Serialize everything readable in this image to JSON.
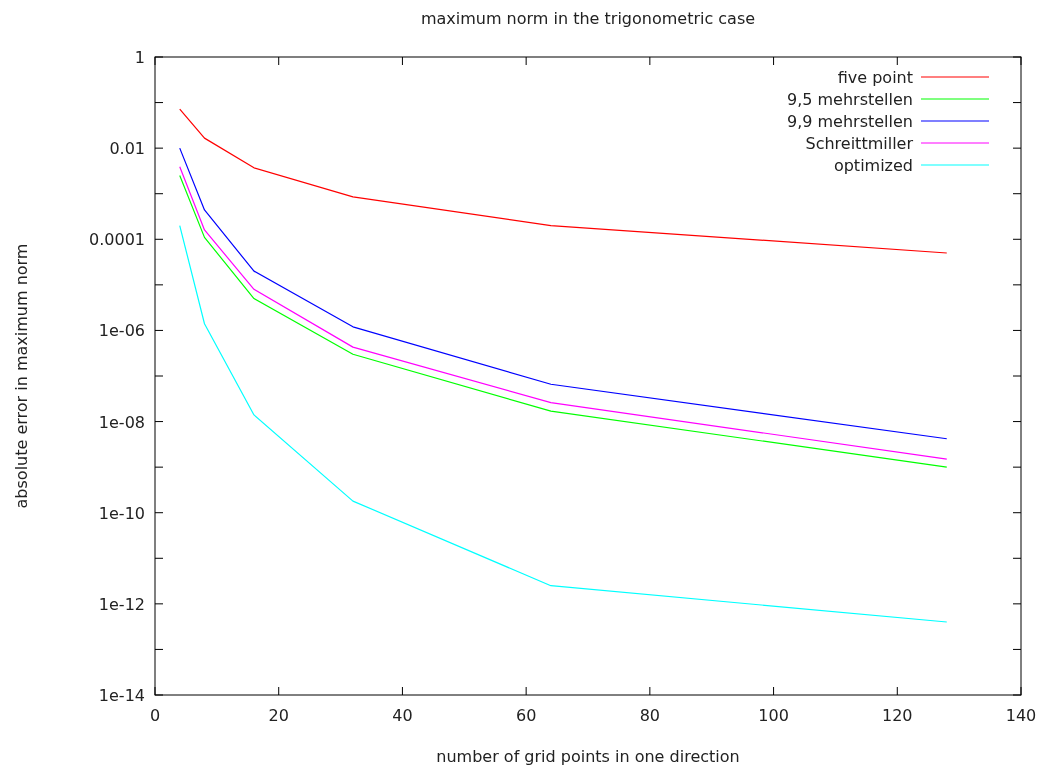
{
  "chart_data": {
    "type": "line",
    "title": "maximum norm in the trigonometric case",
    "xlabel": "number of grid points in one direction",
    "ylabel": "absolute error in maximum norm",
    "x": [
      4,
      8,
      16,
      32,
      64,
      128
    ],
    "series": [
      {
        "name": "five point",
        "color": "#ff0000",
        "values": [
          0.072,
          0.0166,
          0.0037,
          0.00085,
          0.0002,
          5e-05
        ]
      },
      {
        "name": "9,5 mehrstellen",
        "color": "#00ff00",
        "values": [
          0.0025,
          0.00011,
          5e-06,
          3e-07,
          1.7e-08,
          1e-09
        ]
      },
      {
        "name": "9,9 mehrstellen",
        "color": "#0000ff",
        "values": [
          0.01,
          0.00044,
          2e-05,
          1.2e-06,
          6.6e-08,
          4.2e-09
        ]
      },
      {
        "name": "Schreittmiller",
        "color": "#ff00ff",
        "values": [
          0.0039,
          0.00016,
          8e-06,
          4.3e-07,
          2.6e-08,
          1.5e-09
        ]
      },
      {
        "name": "optimized",
        "color": "#00ffff",
        "values": [
          0.0002,
          1.4e-06,
          1.4e-08,
          1.8e-10,
          2.5e-12,
          4e-13
        ]
      }
    ],
    "log": "y",
    "xlim": [
      0,
      140
    ],
    "xticks": [
      0,
      20,
      40,
      60,
      80,
      100,
      120,
      140
    ],
    "ylim": [
      1e-14,
      1
    ],
    "yticks": [
      1,
      {
        "value": 0.1,
        "label": null
      },
      "0.01",
      {
        "value": 0.001,
        "label": null
      },
      {
        "value": 0.0001,
        "label": "0.0001"
      },
      {
        "value": 1e-05,
        "label": null
      },
      {
        "value": 1e-06,
        "label": "1e-06"
      },
      {
        "value": 1e-07,
        "label": null
      },
      {
        "value": 1e-08,
        "label": "1e-08"
      },
      {
        "value": 1e-09,
        "label": null
      },
      {
        "value": 1e-10,
        "label": "1e-10"
      },
      {
        "value": 1e-11,
        "label": null
      },
      {
        "value": 1e-12,
        "label": "1e-12"
      },
      {
        "value": 1e-13,
        "label": null
      },
      {
        "value": 1e-14,
        "label": "1e-14"
      }
    ],
    "legend": "top right",
    "grid": false,
    "marker": "none",
    "line_style": "solid"
  }
}
